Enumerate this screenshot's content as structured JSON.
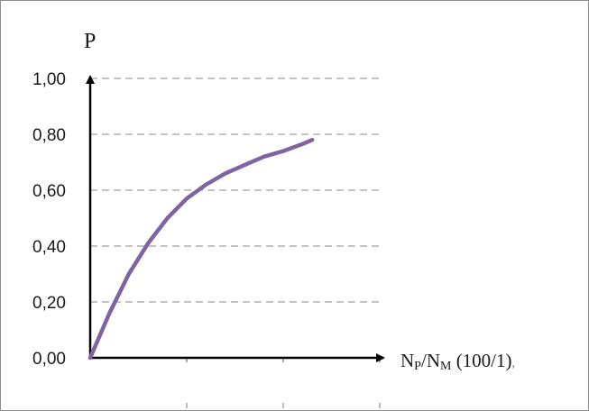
{
  "chart_data": {
    "type": "line",
    "ylabel": "P",
    "xlabel_parts": {
      "n1": "N",
      "sub1": "P",
      "slash": "/",
      "n2": "N",
      "sub2": "M",
      "unit": " (100/1)",
      "trail": ","
    },
    "ylim": [
      0,
      1
    ],
    "yticks": [
      "0,00",
      "0,20",
      "0,40",
      "0,60",
      "0,80",
      "1,00"
    ],
    "ytick_values": [
      0,
      0.2,
      0.4,
      0.6,
      0.8,
      1.0
    ],
    "xlim": [
      0,
      3
    ],
    "x_tick_values": [
      1,
      2,
      3
    ],
    "grid": "horizontal dashed",
    "series": [
      {
        "color": "#8064a2",
        "x": [
          0,
          0.2,
          0.4,
          0.6,
          0.8,
          1.0,
          1.2,
          1.4,
          1.6,
          1.8,
          2.0,
          2.2,
          2.3
        ],
        "y": [
          0,
          0.16,
          0.3,
          0.41,
          0.5,
          0.57,
          0.62,
          0.66,
          0.69,
          0.72,
          0.74,
          0.765,
          0.78
        ]
      }
    ]
  }
}
